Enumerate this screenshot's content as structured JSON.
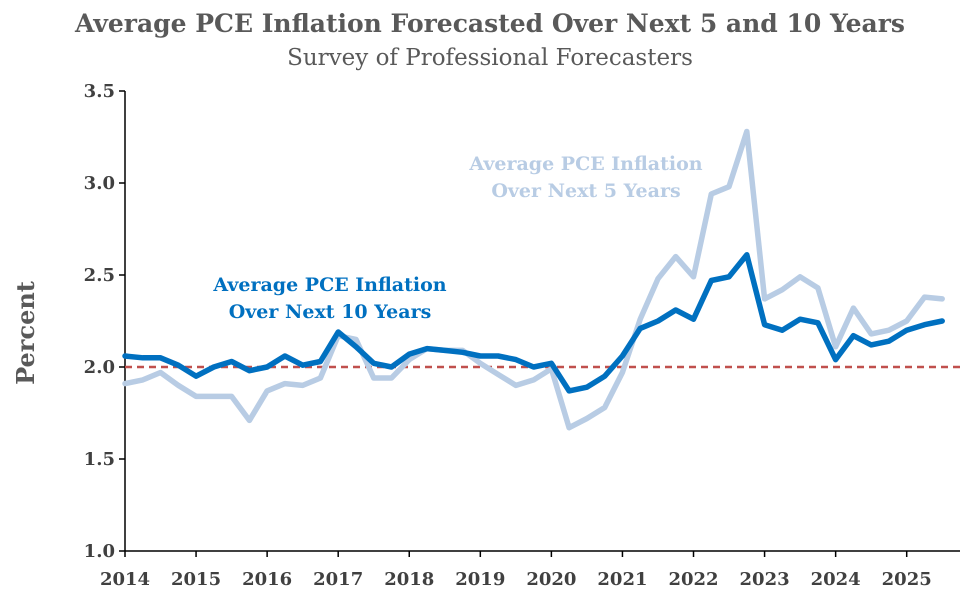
{
  "chart_data": {
    "type": "line",
    "title": "Average PCE Inflation Forecasted Over Next  5 and 10 Years",
    "subtitle": "Survey of Professional Forecasters",
    "ylabel": "Percent",
    "xlabel": "",
    "ylim": [
      1.0,
      3.5
    ],
    "xlim": [
      2014.0,
      2025.75
    ],
    "yticks": [
      "1.0",
      "1.5",
      "2.0",
      "2.5",
      "3.0",
      "3.5"
    ],
    "xticks": [
      "2014",
      "2015",
      "2016",
      "2017",
      "2018",
      "2019",
      "2020",
      "2021",
      "2022",
      "2023",
      "2024",
      "2025"
    ],
    "reference_line": {
      "y": 2.0,
      "color": "#c0504d",
      "style": "dashed"
    },
    "series": [
      {
        "name": "Average PCE Inflation Over Next 5 Years",
        "color": "#b8cce4",
        "x": [
          2014.0,
          2014.25,
          2014.5,
          2014.75,
          2015.0,
          2015.25,
          2015.5,
          2015.75,
          2016.0,
          2016.25,
          2016.5,
          2016.75,
          2017.0,
          2017.25,
          2017.5,
          2017.75,
          2018.0,
          2018.25,
          2018.5,
          2018.75,
          2019.0,
          2019.25,
          2019.5,
          2019.75,
          2020.0,
          2020.25,
          2020.5,
          2020.75,
          2021.0,
          2021.25,
          2021.5,
          2021.75,
          2022.0,
          2022.25,
          2022.5,
          2022.75,
          2023.0,
          2023.25,
          2023.5,
          2023.75,
          2024.0,
          2024.25,
          2024.5,
          2024.75,
          2025.0,
          2025.25,
          2025.5
        ],
        "y": [
          1.91,
          1.93,
          1.97,
          1.9,
          1.84,
          1.84,
          1.84,
          1.71,
          1.87,
          1.91,
          1.9,
          1.94,
          2.17,
          2.15,
          1.94,
          1.94,
          2.04,
          2.1,
          2.09,
          2.09,
          2.02,
          1.96,
          1.9,
          1.93,
          1.99,
          1.67,
          1.72,
          1.78,
          1.97,
          2.26,
          2.48,
          2.6,
          2.49,
          2.94,
          2.98,
          3.28,
          2.37,
          2.42,
          2.49,
          2.43,
          2.11,
          2.32,
          2.18,
          2.2,
          2.25,
          2.38,
          2.37
        ]
      },
      {
        "name": "Average PCE Inflation Over Next 10 Years",
        "color": "#0070c0",
        "x": [
          2014.0,
          2014.25,
          2014.5,
          2014.75,
          2015.0,
          2015.25,
          2015.5,
          2015.75,
          2016.0,
          2016.25,
          2016.5,
          2016.75,
          2017.0,
          2017.25,
          2017.5,
          2017.75,
          2018.0,
          2018.25,
          2018.5,
          2018.75,
          2019.0,
          2019.25,
          2019.5,
          2019.75,
          2020.0,
          2020.25,
          2020.5,
          2020.75,
          2021.0,
          2021.25,
          2021.5,
          2021.75,
          2022.0,
          2022.25,
          2022.5,
          2022.75,
          2023.0,
          2023.25,
          2023.5,
          2023.75,
          2024.0,
          2024.25,
          2024.5,
          2024.75,
          2025.0,
          2025.25,
          2025.5
        ],
        "y": [
          2.06,
          2.05,
          2.05,
          2.01,
          1.95,
          2.0,
          2.03,
          1.98,
          2.0,
          2.06,
          2.01,
          2.03,
          2.19,
          2.11,
          2.02,
          2.0,
          2.07,
          2.1,
          2.09,
          2.08,
          2.06,
          2.06,
          2.04,
          2.0,
          2.02,
          1.87,
          1.89,
          1.95,
          2.06,
          2.21,
          2.25,
          2.31,
          2.26,
          2.47,
          2.49,
          2.61,
          2.23,
          2.2,
          2.26,
          2.24,
          2.04,
          2.17,
          2.12,
          2.14,
          2.2,
          2.23,
          2.25
        ]
      }
    ],
    "annotations": [
      {
        "lines": [
          "Average PCE Inflation",
          "Over Next 5 Years"
        ],
        "color": "#b8cce4"
      },
      {
        "lines": [
          "Average PCE Inflation",
          "Over Next 10 Years"
        ],
        "color": "#0070c0"
      }
    ],
    "grid": false,
    "legend": "none"
  }
}
